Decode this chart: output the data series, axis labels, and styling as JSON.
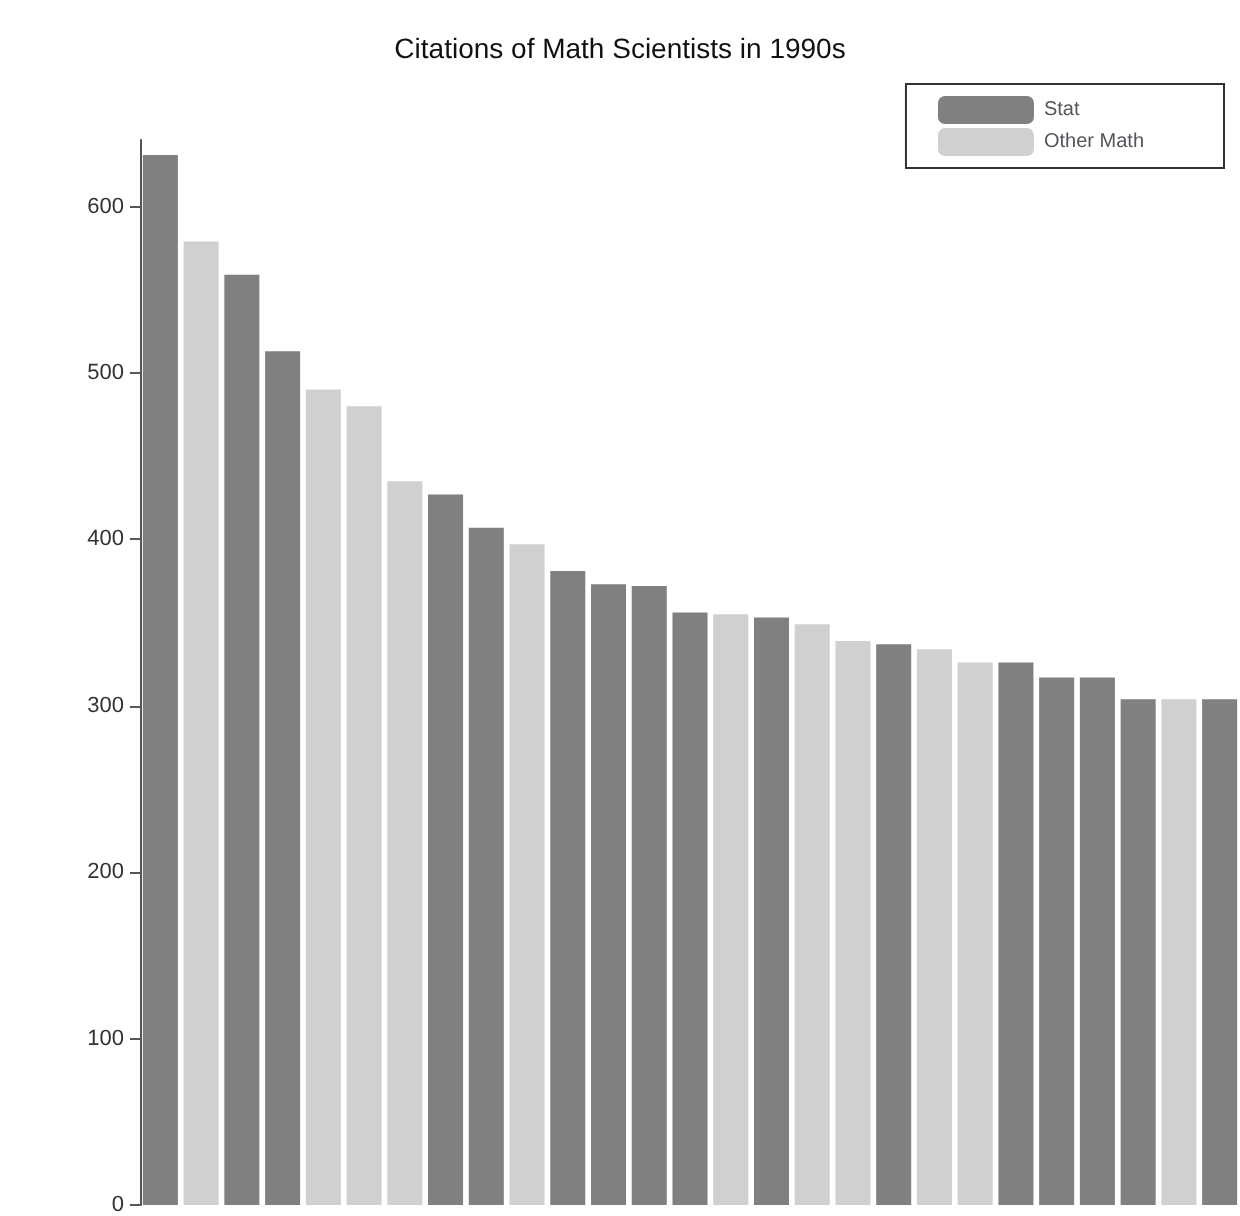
{
  "chart_data": {
    "type": "bar",
    "title": "Citations of Math Scientists in 1990s",
    "categories": [
      null,
      null,
      null,
      null,
      null,
      null,
      null,
      null,
      null,
      null,
      null,
      null,
      null,
      null,
      null,
      null,
      null,
      null,
      null,
      null,
      null,
      null,
      null,
      null,
      null,
      null,
      null
    ],
    "series": [
      {
        "name": "Stat",
        "color": "#808080",
        "values": [
          631,
          null,
          559,
          513,
          null,
          null,
          null,
          427,
          407,
          null,
          381,
          373,
          372,
          356,
          null,
          353,
          null,
          null,
          337,
          null,
          null,
          326,
          317,
          317,
          304,
          null,
          304
        ]
      },
      {
        "name": "Other Math",
        "color": "#d0d0d0",
        "values": [
          null,
          579,
          null,
          null,
          490,
          480,
          435,
          null,
          null,
          397,
          null,
          null,
          null,
          null,
          355,
          null,
          349,
          339,
          null,
          334,
          326,
          null,
          null,
          null,
          null,
          304,
          null
        ]
      }
    ],
    "ylim": [
      0,
      640
    ],
    "yticks": [
      0,
      100,
      200,
      300,
      400,
      500,
      600
    ],
    "stacked": true,
    "grid": false,
    "legend": "top right",
    "tick_labels": "y"
  }
}
